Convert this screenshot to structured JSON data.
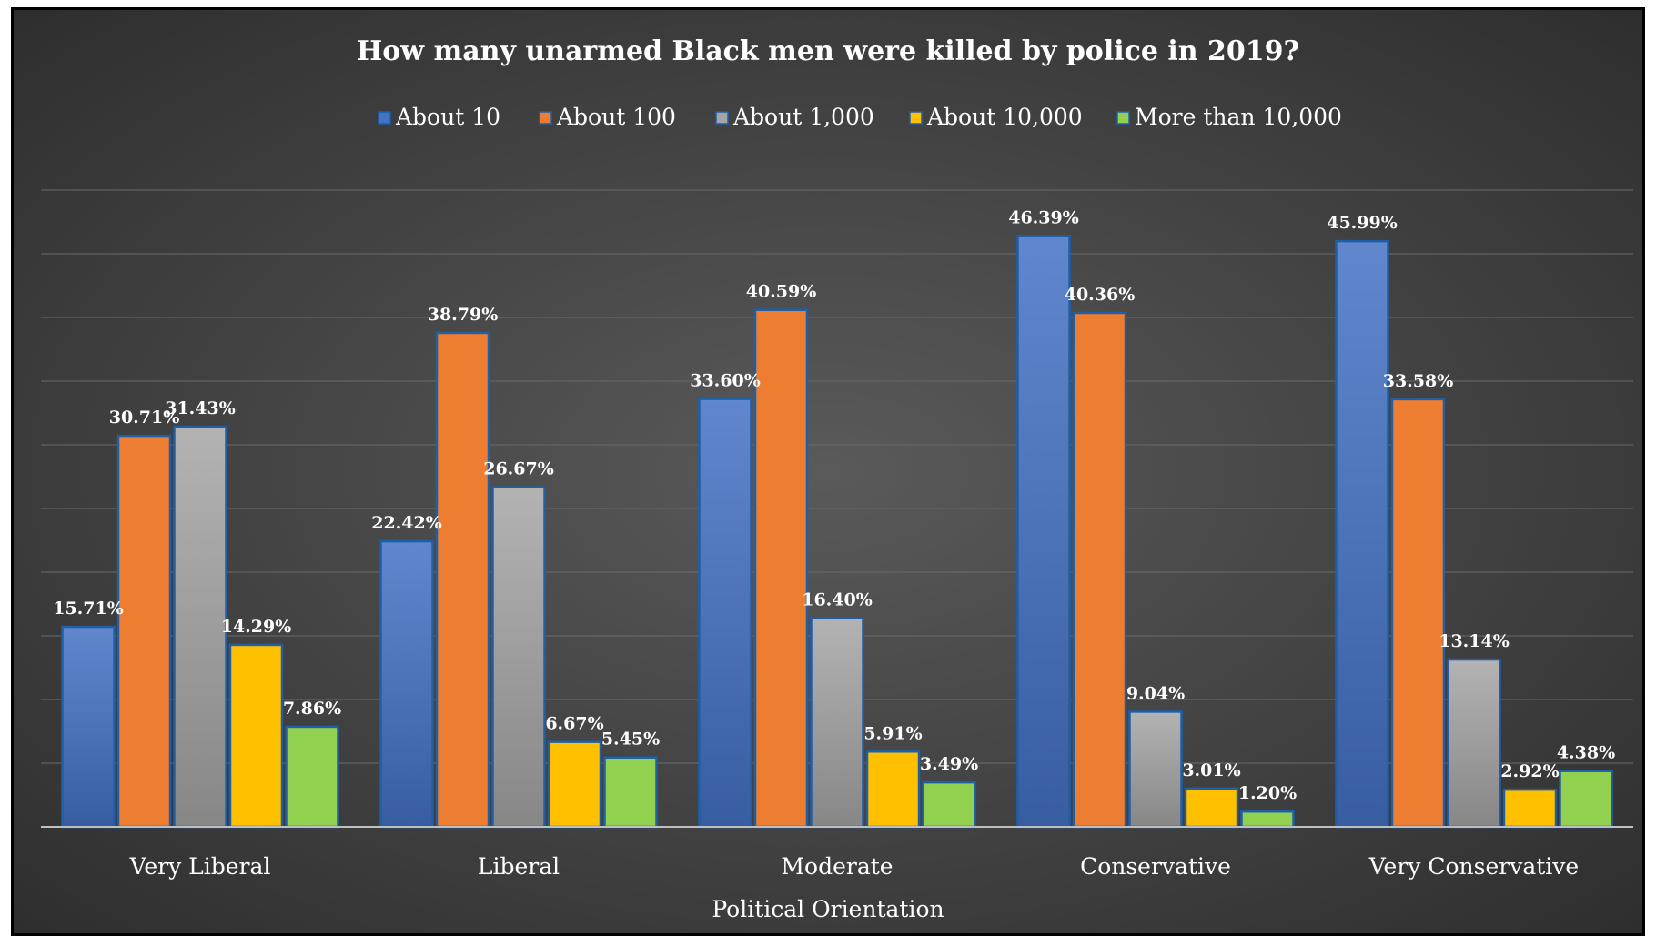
{
  "chart_data": {
    "type": "bar",
    "title": "How many unarmed Black men were killed by police in 2019?",
    "xlabel": "Political Orientation",
    "ylabel": "",
    "categories": [
      "Very Liberal",
      "Liberal",
      "Moderate",
      "Conservative",
      "Very Conservative"
    ],
    "ylim": [
      0,
      50
    ],
    "grid": true,
    "legend_position": "top",
    "series": [
      {
        "name": "About 10",
        "color": "#4472c4",
        "values": [
          15.71,
          22.42,
          33.6,
          46.39,
          45.99
        ],
        "labels": [
          "15.71%",
          "22.42%",
          "33.60%",
          "46.39%",
          "45.99%"
        ]
      },
      {
        "name": "About 100",
        "color": "#ed7d31",
        "values": [
          30.71,
          38.79,
          40.59,
          40.36,
          33.58
        ],
        "labels": [
          "30.71%",
          "38.79%",
          "40.59%",
          "40.36%",
          "33.58%"
        ]
      },
      {
        "name": "About 1,000",
        "color": "#a5a5a5",
        "values": [
          31.43,
          26.67,
          16.4,
          9.04,
          13.14
        ],
        "labels": [
          "31.43%",
          "26.67%",
          "16.40%",
          "9.04%",
          "13.14%"
        ]
      },
      {
        "name": "About 10,000",
        "color": "#ffc000",
        "values": [
          14.29,
          6.67,
          5.91,
          3.01,
          2.92
        ],
        "labels": [
          "14.29%",
          "6.67%",
          "5.91%",
          "3.01%",
          "2.92%"
        ]
      },
      {
        "name": "More than 10,000",
        "color": "#92d050",
        "values": [
          7.86,
          5.45,
          3.49,
          1.2,
          4.38
        ],
        "labels": [
          "7.86%",
          "5.45%",
          "3.49%",
          "1.20%",
          "4.38%"
        ]
      }
    ]
  }
}
